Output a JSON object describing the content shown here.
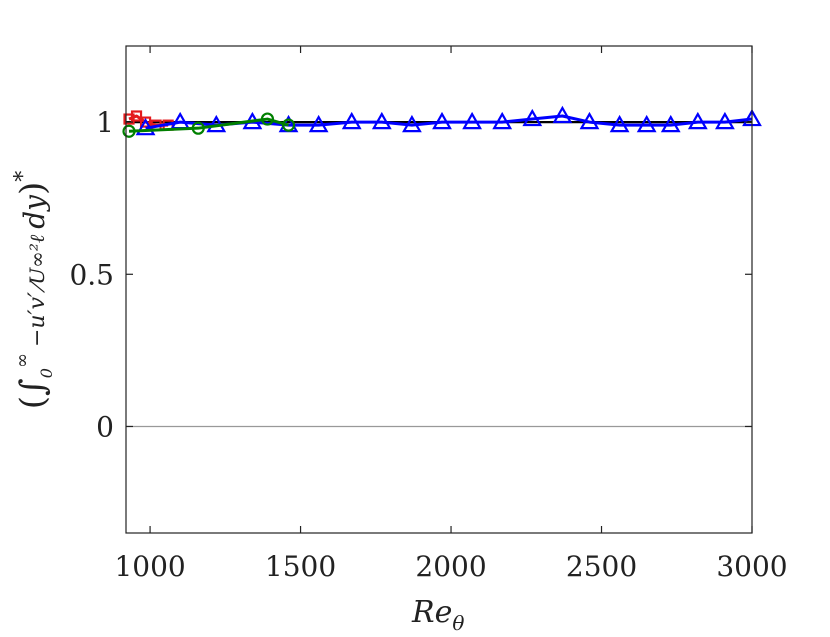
{
  "chart_data": {
    "type": "line",
    "xlabel": "Re_θ",
    "ylabel": "(∫₀^∞ −u′v′ / (U∞² ℓ) dy)*",
    "xlim": [
      920,
      3000
    ],
    "ylim": [
      -0.35,
      1.25
    ],
    "xticks": [
      1000,
      1500,
      2000,
      2500,
      3000
    ],
    "yticks": [
      0,
      0.5,
      1
    ],
    "xtick_labels": [
      "1000",
      "1500",
      "2000",
      "2500",
      "3000"
    ],
    "ytick_labels": [
      "0",
      "0.5",
      "1"
    ],
    "grid": false,
    "reference_lines": [
      {
        "y": 1.0,
        "color": "#000000"
      },
      {
        "y": 0.0,
        "color": "#999999"
      }
    ],
    "series": [
      {
        "color": "#e41a1c",
        "marker": "square",
        "x": [
          930,
          955,
          985,
          1020,
          1060
        ],
        "y": [
          1.01,
          1.02,
          1.0,
          0.99,
          0.99
        ]
      },
      {
        "color": "#0000ff",
        "marker": "triangle",
        "x": [
          985,
          1100,
          1220,
          1340,
          1460,
          1560,
          1670,
          1770,
          1870,
          1970,
          2070,
          2170,
          2270,
          2370,
          2460,
          2560,
          2650,
          2730,
          2820,
          2910,
          3000
        ],
        "y": [
          0.98,
          1.0,
          0.99,
          1.0,
          0.99,
          0.99,
          1.0,
          1.0,
          0.99,
          1.0,
          1.0,
          1.0,
          1.01,
          1.02,
          1.0,
          0.99,
          0.99,
          0.99,
          1.0,
          1.0,
          1.01
        ]
      },
      {
        "color": "#008000",
        "marker": "circle",
        "x": [
          930,
          1160,
          1390,
          1460
        ],
        "y": [
          0.97,
          0.98,
          1.01,
          0.99
        ]
      }
    ]
  }
}
